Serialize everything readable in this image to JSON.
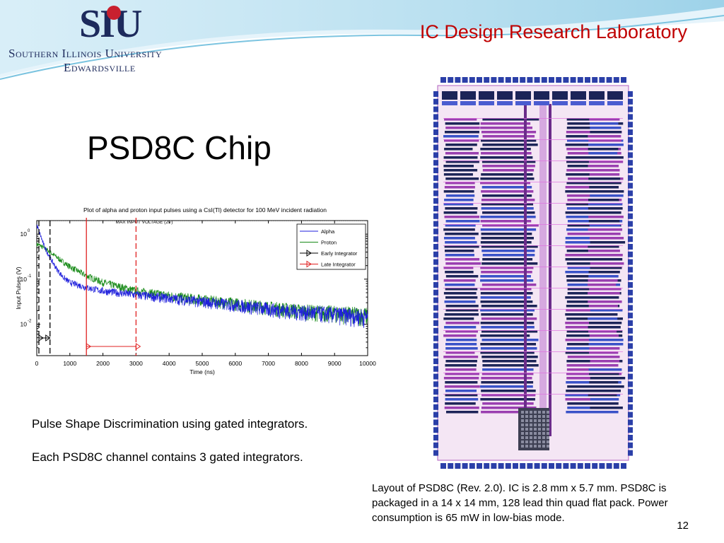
{
  "header": {
    "logo_mark": "SIU",
    "university_line1": "Southern Illinois University",
    "university_line2": "Edwardsville",
    "lab_name": "IC Design Research Laboratory"
  },
  "slide": {
    "title": "PSD8C Chip",
    "paragraph1": "Pulse Shape Discrimination using gated integrators.",
    "paragraph2": "Each PSD8C channel contains 3 gated integrators.",
    "caption": "Layout of PSD8C (Rev. 2.0).  IC is 2.8 mm x 5.7 mm.  PSD8C is packaged in a 14 x 14 mm, 128 lead thin quad flat pack.  Power consumption is 65 mW in low-bias mode.",
    "page_number": "12"
  },
  "colors": {
    "lab_name": "#c00000",
    "alpha": "#1f1fdc",
    "proton": "#178a17",
    "early": "#000000",
    "late": "#e02020"
  },
  "chart_data": {
    "type": "line",
    "title": "Plot of alpha and proton input pulses using a CsI(Tl) detector for 100 MeV incident radiation",
    "annotation": "MAX INPUT VOLTAGE (2V)",
    "xlabel": "Time (ns)",
    "ylabel": "Input Pulses (V)",
    "xlim": [
      0,
      10000
    ],
    "y_scale": "log",
    "ylim": [
      0.002,
      2
    ],
    "x_ticks": [
      0,
      1000,
      2000,
      3000,
      4000,
      5000,
      6000,
      7000,
      8000,
      9000,
      10000
    ],
    "y_ticks": [
      {
        "value": 1,
        "label_base": "10",
        "label_exp": "0"
      },
      {
        "value": 0.1,
        "label_base": "10",
        "label_exp": "-1"
      },
      {
        "value": 0.01,
        "label_base": "10",
        "label_exp": "-2"
      }
    ],
    "series": [
      {
        "name": "Alpha",
        "x": [
          0,
          100,
          200,
          400,
          600,
          800,
          1000,
          1500,
          2000,
          3000,
          4000,
          5000,
          6000,
          7000,
          8000,
          9000,
          10000
        ],
        "y": [
          1.6,
          1.0,
          0.6,
          0.3,
          0.17,
          0.11,
          0.085,
          0.065,
          0.055,
          0.045,
          0.038,
          0.032,
          0.027,
          0.022,
          0.019,
          0.017,
          0.015
        ]
      },
      {
        "name": "Proton",
        "x": [
          0,
          100,
          200,
          400,
          600,
          800,
          1000,
          1500,
          2000,
          3000,
          4000,
          5000,
          6000,
          7000,
          8000,
          9000,
          10000
        ],
        "y": [
          0.6,
          0.56,
          0.5,
          0.4,
          0.31,
          0.24,
          0.19,
          0.12,
          0.085,
          0.055,
          0.043,
          0.035,
          0.029,
          0.024,
          0.02,
          0.018,
          0.016
        ]
      }
    ],
    "gates": [
      {
        "name": "Early Integrator",
        "start": 0,
        "end": 400
      },
      {
        "name": "Late Integrator",
        "start": 1500,
        "end": 3000
      }
    ],
    "legend": [
      "Alpha",
      "Proton",
      "Early Integrator",
      "Late Integrator"
    ],
    "legend_position": "top-right"
  }
}
